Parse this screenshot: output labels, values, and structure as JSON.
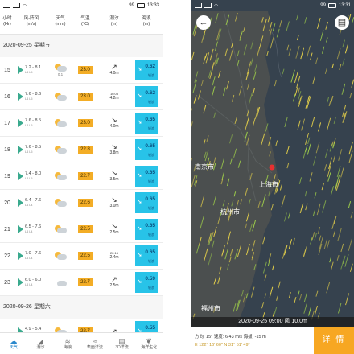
{
  "status_left": {
    "time": "13:33",
    "battery": "99"
  },
  "status_right": {
    "time": "13:31",
    "battery": "99"
  },
  "header": {
    "hour": [
      "小时",
      "(Hr)"
    ],
    "wind": [
      "风-阵风",
      "(m/s)"
    ],
    "weather": [
      "天气",
      "(mm)"
    ],
    "temp": [
      "气温",
      "(°C)"
    ],
    "tide": [
      "潮汐",
      "(m)"
    ],
    "sea": [
      "海浪",
      "(m)"
    ]
  },
  "date1": "2020-09-25  星期五",
  "date2": "2020-09-26  星期六",
  "rows": [
    {
      "hour": "15",
      "wind": "7.2 - 8.1",
      "wlvl": "L4    L5",
      "rain": "0.1",
      "temp": "23.0",
      "tarrow": "↗",
      "tval": "4.0m",
      "tsmall": "",
      "sea": "0.62",
      "slvl": "轻浪"
    },
    {
      "hour": "16",
      "wind": "7.6 - 8.6",
      "wlvl": "L4    L5",
      "rain": "",
      "temp": "23.0",
      "tarrow": "",
      "tval": "4.2m",
      "tsmall": "16:03",
      "sea": "0.62",
      "slvl": "轻浪"
    },
    {
      "hour": "17",
      "wind": "7.6 - 8.5",
      "wlvl": "L4    L5",
      "rain": "",
      "temp": "23.0",
      "tarrow": "↘",
      "tval": "4.0m",
      "tsmall": "",
      "sea": "0.65",
      "slvl": "轻浪"
    },
    {
      "hour": "18",
      "wind": "7.6 - 8.5",
      "wlvl": "L4    L5",
      "rain": "",
      "temp": "22.8",
      "tarrow": "↘",
      "tval": "3.8m",
      "tsmall": "",
      "sea": "0.65",
      "slvl": "轻浪"
    },
    {
      "hour": "19",
      "wind": "7.4 - 8.0",
      "wlvl": "L4    L5",
      "rain": "",
      "temp": "22.7",
      "tarrow": "↘",
      "tval": "3.5m",
      "tsmall": "",
      "sea": "0.65",
      "slvl": "轻浪"
    },
    {
      "hour": "20",
      "wind": "6.4 - 7.6",
      "wlvl": "L4    L4",
      "rain": "",
      "temp": "22.6",
      "tarrow": "↘",
      "tval": "3.0m",
      "tsmall": "",
      "sea": "0.65",
      "slvl": "轻浪"
    },
    {
      "hour": "21",
      "wind": "6.5 - 7.6",
      "wlvl": "L4    L4",
      "rain": "",
      "temp": "22.5",
      "tarrow": "↘",
      "tval": "2.5m",
      "tsmall": "",
      "sea": "0.65",
      "slvl": "轻浪"
    },
    {
      "hour": "22",
      "wind": "7.0 - 7.6",
      "wlvl": "L4    L4",
      "rain": "",
      "temp": "22.5",
      "tarrow": "",
      "tval": "2.4m",
      "tsmall": "22:16",
      "sea": "0.65",
      "slvl": "轻浪"
    },
    {
      "hour": "23",
      "wind": "6.0 - 6.0",
      "wlvl": "L4    L4",
      "rain": "",
      "temp": "22.7",
      "tarrow": "↗",
      "tval": "2.5m",
      "tsmall": "",
      "sea": "0.59",
      "slvl": "轻浪"
    }
  ],
  "next_row": {
    "wind": "4.9 - 5.4",
    "wlvl": "L3    L3",
    "temp": "22.7",
    "tarrow": "↗",
    "sea": "0.55",
    "slvl": "轻浪"
  },
  "tabs": [
    {
      "label": "天气",
      "icon": "☁"
    },
    {
      "label": "潮汐",
      "icon": "◢"
    },
    {
      "label": "海浪",
      "icon": "≋"
    },
    {
      "label": "表面洋流",
      "icon": "≈"
    },
    {
      "label": "3D洋流",
      "icon": "▤"
    },
    {
      "label": "海洋生化",
      "icon": "❦"
    }
  ],
  "map": {
    "city_nanjing": "南京市",
    "city_shanghai": "上海市",
    "city_hangzhou": "杭州市",
    "city_fuzhou": "福州市",
    "banner": "2020-09-25 09:00 风 10.0m",
    "info_line1": "方向: 15°   速度: 6.43 m/s  海拔: -15 m",
    "info_line2": "E 122° 16' 60\"   N 31° 51' 49\"",
    "detail_label": "详 情"
  }
}
